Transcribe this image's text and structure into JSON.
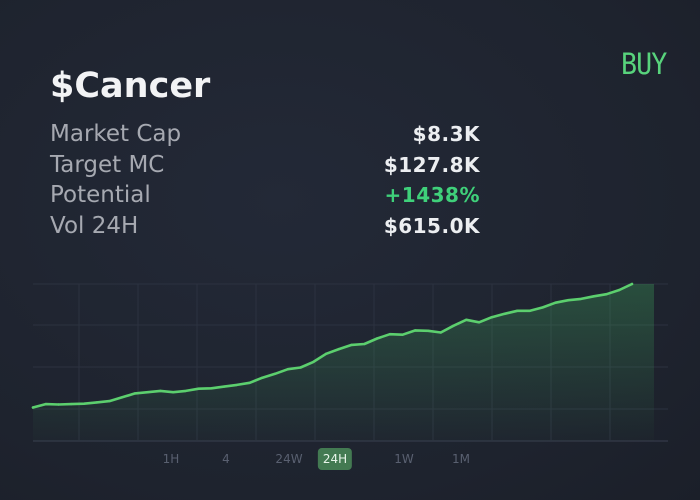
{
  "token": {
    "name": "$Cancer",
    "buy_label": "BUY"
  },
  "stats": [
    {
      "label": "Market Cap",
      "value": "$8.3K",
      "tone": "neutral"
    },
    {
      "label": "Target MC",
      "value": "$127.8K",
      "tone": "neutral"
    },
    {
      "label": "Potential",
      "value": "+1438%",
      "tone": "positive"
    },
    {
      "label": "Vol 24H",
      "value": "$615.0K",
      "tone": "neutral"
    }
  ],
  "timeframes": {
    "items": [
      "1H",
      "4",
      "24W",
      "24H",
      "1W",
      "1M"
    ],
    "active": "24H"
  },
  "colors": {
    "background": "#1f2430",
    "accent": "#58d37c",
    "positive": "#3fd07a",
    "line": "#5ccf6e",
    "grid": "#2c3240",
    "active_tab": "#437a52"
  },
  "chart_data": {
    "type": "area",
    "title": "",
    "xlabel": "",
    "ylabel": "",
    "grid": true,
    "series": [
      {
        "values": [
          2.0,
          2.8,
          2.7,
          2.8,
          2.9,
          3.2,
          3.5,
          4.4,
          5.3,
          5.6,
          5.9,
          5.6,
          5.9,
          6.4,
          6.5,
          6.9,
          7.3,
          7.8,
          9.0,
          9.9,
          11.0,
          11.4,
          12.7,
          14.6,
          15.7,
          16.7,
          16.9,
          18.2,
          19.2,
          19.1,
          20.1,
          20.0,
          19.6,
          21.2,
          22.6,
          22.0,
          23.2,
          24.0,
          24.7,
          24.7,
          25.5,
          26.6,
          27.2,
          27.5,
          28.1,
          28.6,
          29.6,
          31.0
        ]
      }
    ]
  }
}
